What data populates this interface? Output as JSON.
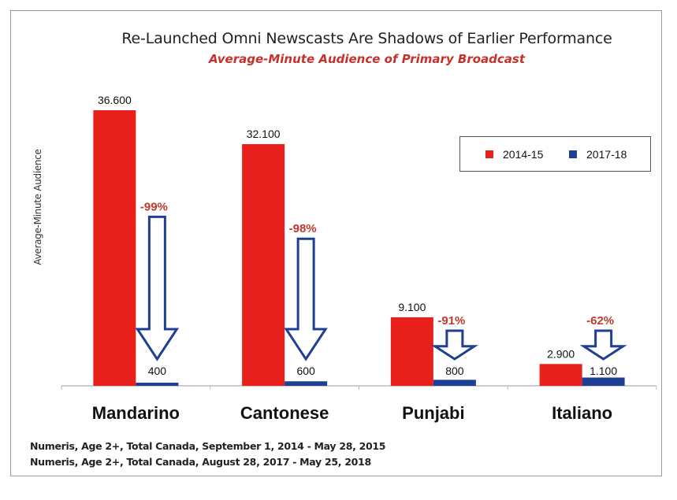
{
  "chart_data": {
    "type": "bar",
    "title": "Re-Launched Omni Newscasts Are Shadows of Earlier Performance",
    "subtitle": "Average-Minute Audience of Primary Broadcast",
    "ylabel": "Average-Minute Audience",
    "xlabel": "",
    "categories": [
      "Mandarino",
      "Cantonese",
      "Punjabi",
      "Italiano"
    ],
    "series": [
      {
        "name": "2014-15",
        "color": "#e8201c",
        "values": [
          36600,
          32100,
          9100,
          2900
        ],
        "labels": [
          "36.600",
          "32.100",
          "9.100",
          "2.900"
        ]
      },
      {
        "name": "2017-18",
        "color": "#1f3f93",
        "values": [
          400,
          600,
          800,
          1100
        ],
        "labels": [
          "400",
          "600",
          "800",
          "1.100"
        ]
      }
    ],
    "changes": [
      "-99%",
      "-98%",
      "-91%",
      "-62%"
    ],
    "change_color": "#c0392b",
    "arrow_color": "#1f3f93",
    "ylim": [
      0,
      40000
    ],
    "grid": false,
    "legend_position": "top-right"
  },
  "sources": [
    "Numeris, Age 2+, Total Canada, September 1, 2014 - May 28, 2015",
    "Numeris, Age 2+, Total Canada, August 28, 2017 - May 25, 2018"
  ]
}
